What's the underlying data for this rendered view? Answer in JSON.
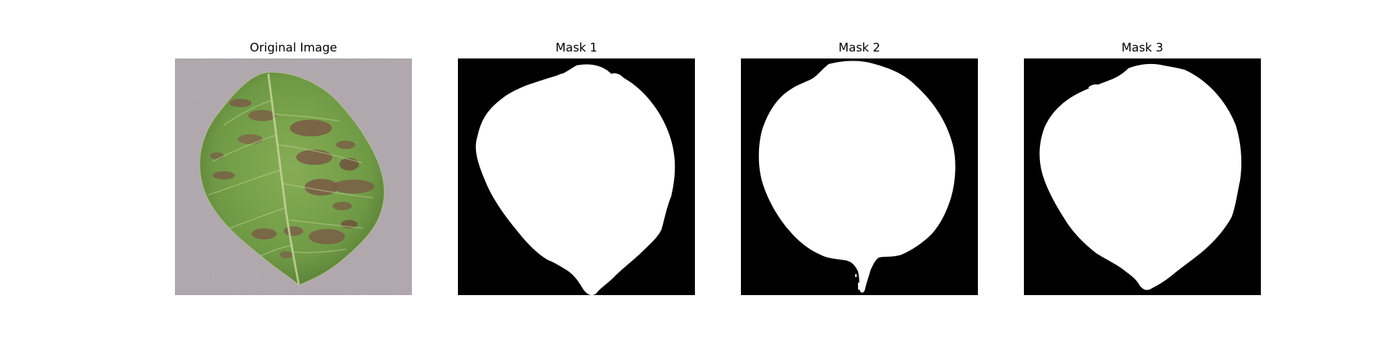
{
  "figure": {
    "panels": [
      {
        "title": "Original Image",
        "kind": "photo"
      },
      {
        "title": "Mask 1",
        "kind": "mask"
      },
      {
        "title": "Mask 2",
        "kind": "mask"
      },
      {
        "title": "Mask 3",
        "kind": "mask"
      }
    ]
  },
  "colors": {
    "background": "#ffffff",
    "mask_foreground": "#ffffff",
    "mask_background": "#000000",
    "photo_backdrop": "#b7afb4",
    "leaf_green": "#7aa24a",
    "leaf_green_dark": "#5c7f37",
    "lesion_brown": "#7a5e46",
    "vein": "#c7d39a"
  }
}
